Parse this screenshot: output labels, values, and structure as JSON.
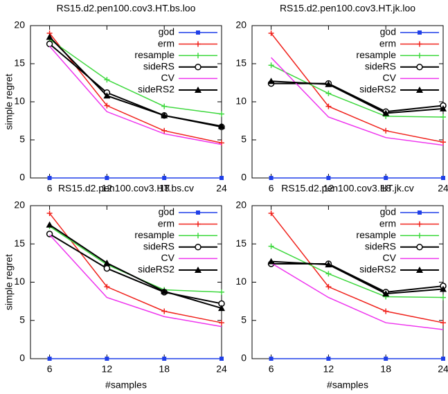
{
  "chart_data": [
    {
      "type": "line",
      "title": "RS15.d2.pen100.cov3.HT.bs.loo",
      "ylabel": "simple regret",
      "x": [
        6,
        12,
        18,
        24
      ],
      "xlim": [
        4,
        24
      ],
      "xticks": [
        6,
        12,
        18,
        24
      ],
      "ylim": [
        0,
        20
      ],
      "yticks": [
        0,
        5,
        10,
        15,
        20
      ],
      "series": [
        {
          "name": "god",
          "color": "#1f3fe8",
          "marker": "square",
          "values": [
            0,
            0,
            0,
            0
          ]
        },
        {
          "name": "erm",
          "color": "#f0201a",
          "marker": "plus",
          "values": [
            19,
            9.5,
            6.2,
            4.6
          ]
        },
        {
          "name": "resample",
          "color": "#3ed83e",
          "marker": "plus",
          "values": [
            18.2,
            12.9,
            9.4,
            8.4
          ]
        },
        {
          "name": "sideRS",
          "color": "#000000",
          "marker": "circle",
          "values": [
            17.6,
            11.2,
            8.2,
            6.7
          ]
        },
        {
          "name": "CV",
          "color": "#ee33ee",
          "marker": "none",
          "values": [
            17.3,
            8.7,
            5.8,
            4.4
          ]
        },
        {
          "name": "sideRS2",
          "color": "#000000",
          "marker": "triangle",
          "values": [
            18.5,
            10.8,
            8.2,
            6.8
          ]
        }
      ]
    },
    {
      "type": "line",
      "title": "RS15.d2.pen100.cov3.HT.jk.loo",
      "x": [
        6,
        12,
        18,
        24
      ],
      "xlim": [
        4,
        24
      ],
      "xticks": [
        6,
        12,
        18,
        24
      ],
      "ylim": [
        0,
        20
      ],
      "yticks": [
        0,
        5,
        10,
        15,
        20
      ],
      "series": [
        {
          "name": "god",
          "color": "#1f3fe8",
          "marker": "square",
          "values": [
            0,
            0,
            0,
            0
          ]
        },
        {
          "name": "erm",
          "color": "#f0201a",
          "marker": "plus",
          "values": [
            19,
            9.4,
            6.2,
            4.7
          ]
        },
        {
          "name": "resample",
          "color": "#3ed83e",
          "marker": "plus",
          "values": [
            14.8,
            11.1,
            8.1,
            8.0
          ]
        },
        {
          "name": "sideRS",
          "color": "#000000",
          "marker": "circle",
          "values": [
            12.4,
            12.4,
            8.7,
            9.5
          ]
        },
        {
          "name": "CV",
          "color": "#ee33ee",
          "marker": "none",
          "values": [
            15.8,
            8.0,
            5.3,
            4.3
          ]
        },
        {
          "name": "sideRS2",
          "color": "#000000",
          "marker": "triangle",
          "values": [
            12.7,
            12.3,
            8.5,
            9.1
          ]
        }
      ]
    },
    {
      "type": "line",
      "title": "RS15.d2.pen100.cov3.HT.bs.cv",
      "ylabel": "simple regret",
      "xlabel": "#samples",
      "x": [
        6,
        12,
        18,
        24
      ],
      "xlim": [
        4,
        24
      ],
      "xticks": [
        6,
        12,
        18,
        24
      ],
      "ylim": [
        0,
        20
      ],
      "yticks": [
        0,
        5,
        10,
        15,
        20
      ],
      "series": [
        {
          "name": "god",
          "color": "#1f3fe8",
          "marker": "square",
          "values": [
            0,
            0,
            0,
            0
          ]
        },
        {
          "name": "erm",
          "color": "#f0201a",
          "marker": "plus",
          "values": [
            19,
            9.4,
            6.2,
            4.7
          ]
        },
        {
          "name": "resample",
          "color": "#3ed83e",
          "marker": "plus",
          "values": [
            17.3,
            12.3,
            9.0,
            8.7
          ]
        },
        {
          "name": "sideRS",
          "color": "#000000",
          "marker": "circle",
          "values": [
            16.3,
            11.8,
            8.7,
            7.2
          ]
        },
        {
          "name": "CV",
          "color": "#ee33ee",
          "marker": "none",
          "values": [
            16.2,
            8.0,
            5.5,
            4.2
          ]
        },
        {
          "name": "sideRS2",
          "color": "#000000",
          "marker": "triangle",
          "values": [
            17.5,
            12.5,
            8.8,
            6.6
          ]
        }
      ]
    },
    {
      "type": "line",
      "title": "RS15.d2.pen100.cov3.HT.jk.cv",
      "xlabel": "#samples",
      "x": [
        6,
        12,
        18,
        24
      ],
      "xlim": [
        4,
        24
      ],
      "xticks": [
        6,
        12,
        18,
        24
      ],
      "ylim": [
        0,
        20
      ],
      "yticks": [
        0,
        5,
        10,
        15,
        20
      ],
      "series": [
        {
          "name": "god",
          "color": "#1f3fe8",
          "marker": "square",
          "values": [
            0,
            0,
            0,
            0
          ]
        },
        {
          "name": "erm",
          "color": "#f0201a",
          "marker": "plus",
          "values": [
            19,
            9.4,
            6.2,
            4.7
          ]
        },
        {
          "name": "resample",
          "color": "#3ed83e",
          "marker": "plus",
          "values": [
            14.7,
            11.1,
            8.1,
            8.0
          ]
        },
        {
          "name": "sideRS",
          "color": "#000000",
          "marker": "circle",
          "values": [
            12.4,
            12.4,
            8.7,
            9.5
          ]
        },
        {
          "name": "CV",
          "color": "#ee33ee",
          "marker": "none",
          "values": [
            12.5,
            8.0,
            4.7,
            3.8
          ]
        },
        {
          "name": "sideRS2",
          "color": "#000000",
          "marker": "triangle",
          "values": [
            12.7,
            12.3,
            8.5,
            9.1
          ]
        }
      ]
    }
  ]
}
